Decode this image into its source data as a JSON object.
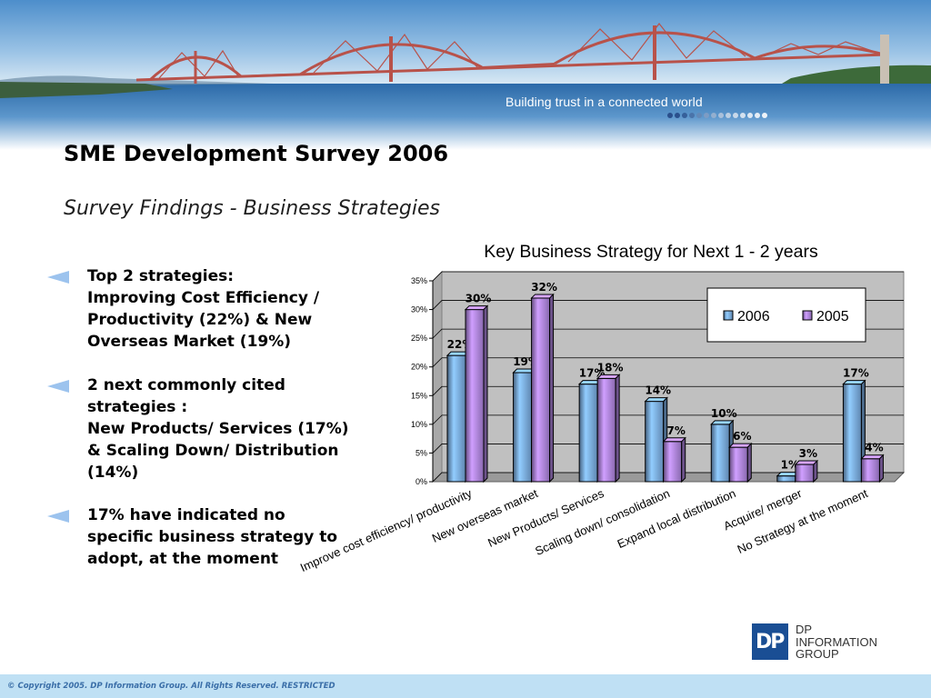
{
  "banner": {
    "tagline": "Building trust in a connected world"
  },
  "slide": {
    "title": "SME Development Survey 2006",
    "subtitle": "Survey Findings  -  Business Strategies"
  },
  "bullets": [
    {
      "lines": [
        "Top 2 strategies:",
        "Improving Cost Efficiency /",
        "Productivity (22%) & New",
        "Overseas Market (19%)"
      ]
    },
    {
      "lines": [
        "2 next commonly cited",
        "strategies :",
        "New Products/ Services (17%)",
        "& Scaling Down/ Distribution",
        "(14%)"
      ]
    },
    {
      "lines": [
        "17% have indicated no",
        "specific business strategy to",
        "adopt, at the moment"
      ]
    }
  ],
  "chart_data": {
    "type": "bar",
    "title": "Key Business Strategy for Next 1 - 2 years",
    "categories": [
      "Improve cost efficiency/ productivity",
      "New overseas market",
      "New Products/ Services",
      "Scaling down/ consolidation",
      "Expand local distribution",
      "Acquire/ merger",
      "No Strategy at the moment"
    ],
    "series": [
      {
        "name": "2006",
        "values": [
          22,
          19,
          17,
          14,
          10,
          1,
          17
        ],
        "labels": [
          "22%",
          "19%",
          "17%",
          "14%",
          "10%",
          "1%",
          "17%"
        ],
        "color": "#7fb2ea"
      },
      {
        "name": "2005",
        "values": [
          30,
          32,
          18,
          7,
          6,
          3,
          4
        ],
        "labels": [
          "30%",
          "32%",
          "18%",
          "7%",
          "6%",
          "3%",
          "4%"
        ],
        "color": "#b58ae8"
      }
    ],
    "yticks": [
      "0%",
      "5%",
      "10%",
      "15%",
      "20%",
      "25%",
      "30%",
      "35%"
    ],
    "ylim": [
      0,
      35
    ],
    "grid": true,
    "legend": "top-right",
    "three_d": true
  },
  "logo": {
    "mark": "DP",
    "lines": [
      "DP",
      "INFORMATION",
      "GROUP"
    ]
  },
  "footer": {
    "copyright": "© Copyright 2005. DP Information Group. All Rights Reserved. RESTRICTED"
  }
}
